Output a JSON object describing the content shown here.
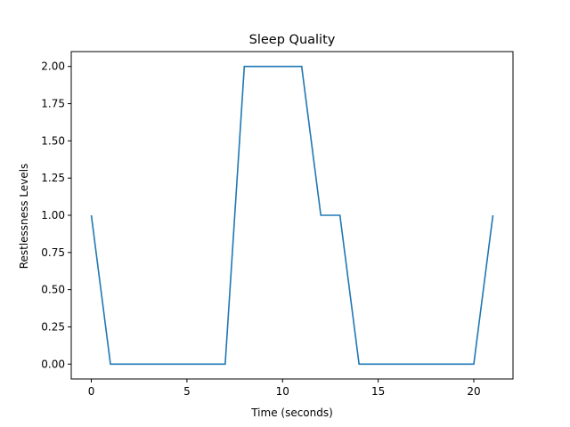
{
  "chart_data": {
    "type": "line",
    "title": "Sleep Quality",
    "xlabel": "Time (seconds)",
    "ylabel": "Restlessness Levels",
    "xlim": [
      -1.05,
      22.05
    ],
    "ylim": [
      -0.1,
      2.1
    ],
    "x_ticks": [
      0,
      5,
      10,
      15,
      20
    ],
    "x_tick_labels": [
      "0",
      "5",
      "10",
      "15",
      "20"
    ],
    "y_ticks": [
      0,
      0.25,
      0.5,
      0.75,
      1.0,
      1.25,
      1.5,
      1.75,
      2.0
    ],
    "y_tick_labels": [
      "0.00",
      "0.25",
      "0.50",
      "0.75",
      "1.00",
      "1.25",
      "1.50",
      "1.75",
      "2.00"
    ],
    "grid": false,
    "series": [
      {
        "color": "#1f77b4",
        "x": [
          0,
          1,
          2,
          3,
          4,
          5,
          6,
          7,
          8,
          9,
          10,
          11,
          12,
          13,
          14,
          15,
          16,
          17,
          18,
          19,
          20,
          21
        ],
        "y": [
          1,
          0,
          0,
          0,
          0,
          0,
          0,
          0,
          2,
          2,
          2,
          2,
          1,
          1,
          0,
          0,
          0,
          0,
          0,
          0,
          0,
          1
        ]
      }
    ]
  }
}
